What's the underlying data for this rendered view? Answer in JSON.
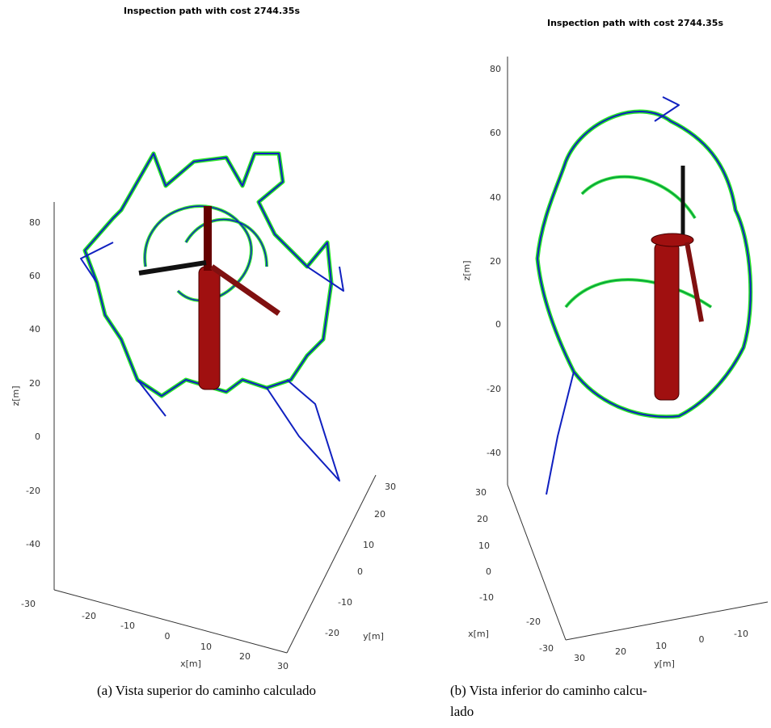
{
  "figures": [
    {
      "title": "Inspection path with cost 2744.35s",
      "z_label": "z[m]",
      "x_label": "x[m]",
      "y_label": "y[m]",
      "z_ticks": [
        "80",
        "60",
        "40",
        "20",
        "0",
        "-20",
        "-40"
      ],
      "x_ticks": [
        "-30",
        "-20",
        "-10",
        "0",
        "10",
        "20",
        "30"
      ],
      "y_ticks": [
        "30",
        "20",
        "10",
        "0",
        "-10",
        "-20"
      ],
      "caption": [
        "(a) Vista superior do caminho calculado"
      ]
    },
    {
      "title": "Inspection path with cost 2744.35s",
      "z_label": "z[m]",
      "x_label": "x[m]",
      "y_label": "y[m]",
      "z_ticks": [
        "80",
        "60",
        "40",
        "20",
        "0",
        "-20",
        "-40"
      ],
      "x_ticks": [
        "30",
        "20",
        "10",
        "0",
        "-10",
        "-20",
        "-30"
      ],
      "y_ticks": [
        "30",
        "20",
        "10",
        "0",
        "-10"
      ],
      "caption": [
        "(b) Vista inferior do caminho calcu-",
        "lado"
      ]
    }
  ]
}
